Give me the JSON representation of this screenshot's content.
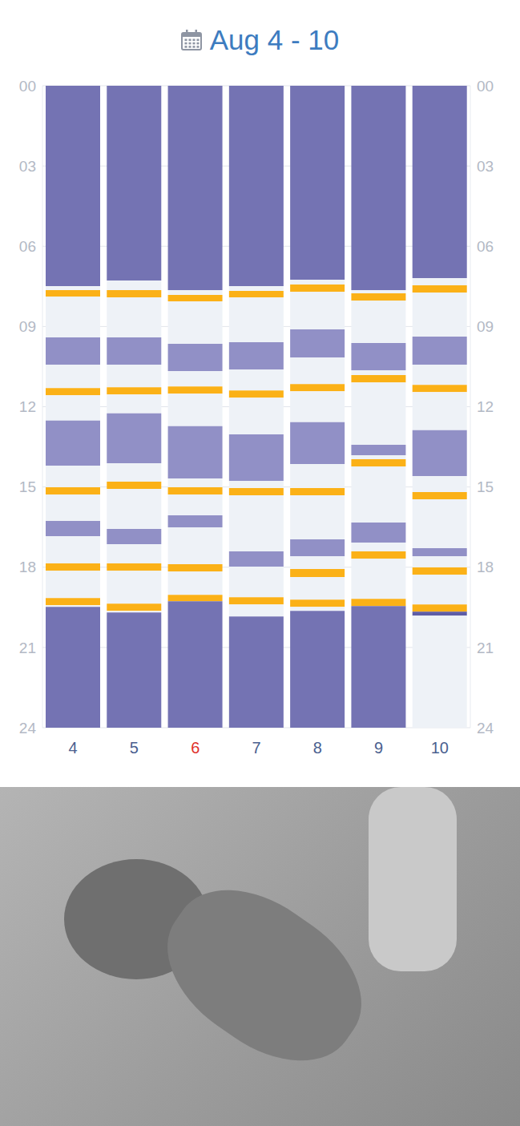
{
  "chart_data": {
    "type": "bar",
    "title": "Aug 4 - 10",
    "stacked": true,
    "grid": true,
    "categories": [
      "4",
      "5",
      "6",
      "7",
      "8",
      "9",
      "10"
    ],
    "category_colors": [
      "#4a5f8f",
      "#4a5f8f",
      "#e0312b",
      "#4a5f8f",
      "#4a5f8f",
      "#4a5f8f",
      "#4a5f8f"
    ],
    "ylim": [
      0,
      24
    ],
    "yticks": [
      {
        "value": 0,
        "label": "00"
      },
      {
        "value": 3,
        "label": "03"
      },
      {
        "value": 6,
        "label": "06"
      },
      {
        "value": 9,
        "label": "09"
      },
      12,
      15,
      18,
      21,
      24
    ],
    "stacks": [
      {
        "values": [
          7.49,
          0.15,
          0.24,
          1.53,
          1.02,
          0.87,
          0.27,
          0.95,
          1.68,
          0.81,
          0.27,
          0.99,
          0.57,
          1.02,
          0.27,
          1.02,
          0.27,
          0.06,
          4.52
        ],
        "colors": [
          "#7473b3",
          "#eef2f7",
          "#fbb117",
          "#eef2f7",
          "#9190c6",
          "#eef2f7",
          "#fbb117",
          "#eef2f7",
          "#9190c6",
          "#eef2f7",
          "#fbb117",
          "#eef2f7",
          "#9190c6",
          "#eef2f7",
          "#fbb117",
          "#eef2f7",
          "#fbb117",
          "#eef2f7",
          "#7473b3"
        ]
      },
      {
        "values": [
          7.28,
          0.36,
          0.27,
          1.5,
          1.02,
          0.84,
          0.27,
          0.71,
          1.86,
          0.69,
          0.27,
          1.5,
          0.57,
          0.72,
          0.27,
          1.23,
          0.27,
          0.06,
          4.31
        ],
        "colors": [
          "#7473b3",
          "#eef2f7",
          "#fbb117",
          "#eef2f7",
          "#9190c6",
          "#eef2f7",
          "#fbb117",
          "#eef2f7",
          "#9190c6",
          "#eef2f7",
          "#fbb117",
          "#eef2f7",
          "#9190c6",
          "#eef2f7",
          "#fbb117",
          "#eef2f7",
          "#fbb117",
          "#eef2f7",
          "#7473b3"
        ]
      },
      {
        "values": [
          7.64,
          0.18,
          0.24,
          1.59,
          1.02,
          0.57,
          0.27,
          1.22,
          1.95,
          0.33,
          0.27,
          0.78,
          0.45,
          1.38,
          0.27,
          0.87,
          0.24,
          4.73
        ],
        "colors": [
          "#7473b3",
          "#eef2f7",
          "#fbb117",
          "#eef2f7",
          "#9190c6",
          "#eef2f7",
          "#fbb117",
          "#eef2f7",
          "#9190c6",
          "#eef2f7",
          "#fbb117",
          "#eef2f7",
          "#9190c6",
          "#eef2f7",
          "#fbb117",
          "#eef2f7",
          "#fbb117",
          "#7473b3"
        ]
      },
      {
        "values": [
          7.49,
          0.18,
          0.24,
          1.68,
          1.02,
          0.78,
          0.27,
          1.37,
          1.74,
          0.27,
          0.27,
          2.1,
          0.57,
          1.14,
          0.27,
          0.45,
          4.16
        ],
        "colors": [
          "#7473b3",
          "#eef2f7",
          "#fbb117",
          "#eef2f7",
          "#9190c6",
          "#eef2f7",
          "#fbb117",
          "#eef2f7",
          "#9190c6",
          "#eef2f7",
          "#fbb117",
          "#eef2f7",
          "#9190c6",
          "#eef2f7",
          "#fbb117",
          "#eef2f7",
          "#7473b3"
        ]
      },
      {
        "values": [
          7.25,
          0.18,
          0.27,
          1.41,
          1.05,
          0.99,
          0.27,
          1.16,
          1.56,
          0.9,
          0.27,
          1.65,
          0.63,
          0.48,
          0.3,
          0.84,
          0.27,
          0.15,
          4.37
        ],
        "colors": [
          "#7473b3",
          "#eef2f7",
          "#fbb117",
          "#eef2f7",
          "#9190c6",
          "#eef2f7",
          "#fbb117",
          "#eef2f7",
          "#9190c6",
          "#eef2f7",
          "#fbb117",
          "#eef2f7",
          "#9190c6",
          "#eef2f7",
          "#fbb117",
          "#eef2f7",
          "#fbb117",
          "#eef2f7",
          "#7473b3"
        ]
      },
      {
        "values": [
          7.64,
          0.12,
          0.27,
          1.59,
          1.02,
          0.18,
          0.27,
          2.33,
          0.39,
          0.15,
          0.27,
          2.1,
          0.75,
          0.33,
          0.27,
          1.5,
          0.27,
          4.55
        ],
        "colors": [
          "#7473b3",
          "#eef2f7",
          "#fbb117",
          "#eef2f7",
          "#9190c6",
          "#eef2f7",
          "#fbb117",
          "#eef2f7",
          "#9190c6",
          "#eef2f7",
          "#fbb117",
          "#eef2f7",
          "#9190c6",
          "#eef2f7",
          "#fbb117",
          "#eef2f7",
          "#fbb117",
          "#7473b3"
        ]
      },
      {
        "values": [
          7.19,
          0.27,
          0.27,
          1.65,
          1.05,
          0.75,
          0.27,
          1.43,
          1.71,
          0.6,
          0.27,
          1.83,
          0.3,
          0.42,
          0.27,
          1.11,
          0.27,
          0.15,
          4.19
        ],
        "colors": [
          "#7473b3",
          "#eef2f7",
          "#fbb117",
          "#eef2f7",
          "#9190c6",
          "#eef2f7",
          "#fbb117",
          "#eef2f7",
          "#9190c6",
          "#eef2f7",
          "#fbb117",
          "#eef2f7",
          "#9190c6",
          "#eef2f7",
          "#fbb117",
          "#eef2f7",
          "#fbb117",
          "#5e5da6",
          "#eef2f7"
        ]
      }
    ]
  }
}
